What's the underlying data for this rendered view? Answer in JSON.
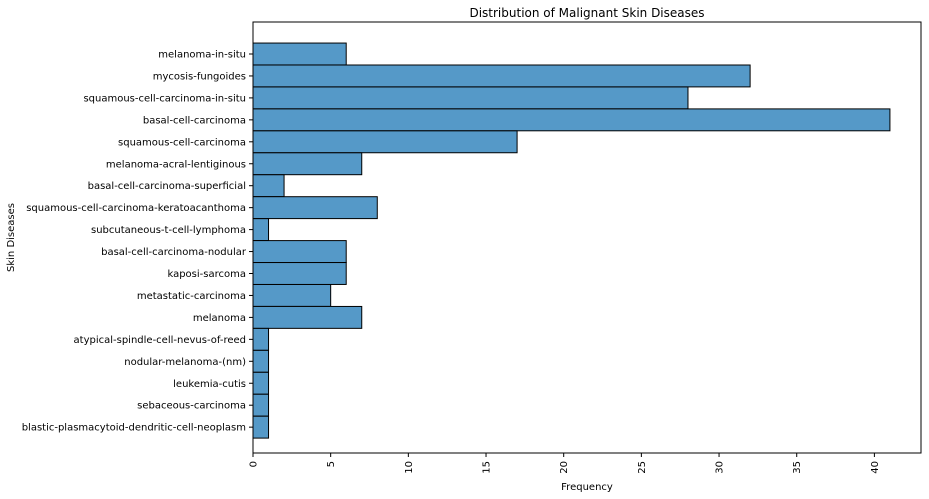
{
  "chart_data": {
    "type": "bar",
    "orientation": "horizontal",
    "title": "Distribution of Malignant Skin Diseases",
    "xlabel": "Frequency",
    "ylabel": "Skin Diseases",
    "xlim": [
      0,
      43
    ],
    "x_ticks": [
      0,
      5,
      10,
      15,
      20,
      25,
      30,
      35,
      40
    ],
    "grid": false,
    "bar_color": "#5599c8",
    "edge_color": "#000000",
    "categories": [
      "melanoma-in-situ",
      "mycosis-fungoides",
      "squamous-cell-carcinoma-in-situ",
      "basal-cell-carcinoma",
      "squamous-cell-carcinoma",
      "melanoma-acral-lentiginous",
      "basal-cell-carcinoma-superficial",
      "squamous-cell-carcinoma-keratoacanthoma",
      "subcutaneous-t-cell-lymphoma",
      "basal-cell-carcinoma-nodular",
      "kaposi-sarcoma",
      "metastatic-carcinoma",
      "melanoma",
      "atypical-spindle-cell-nevus-of-reed",
      "nodular-melanoma-(nm)",
      "leukemia-cutis",
      "sebaceous-carcinoma",
      "blastic-plasmacytoid-dendritic-cell-neoplasm"
    ],
    "values": [
      6,
      32,
      28,
      41,
      17,
      7,
      2,
      8,
      1,
      6,
      6,
      5,
      7,
      1,
      1,
      1,
      1,
      1
    ]
  }
}
